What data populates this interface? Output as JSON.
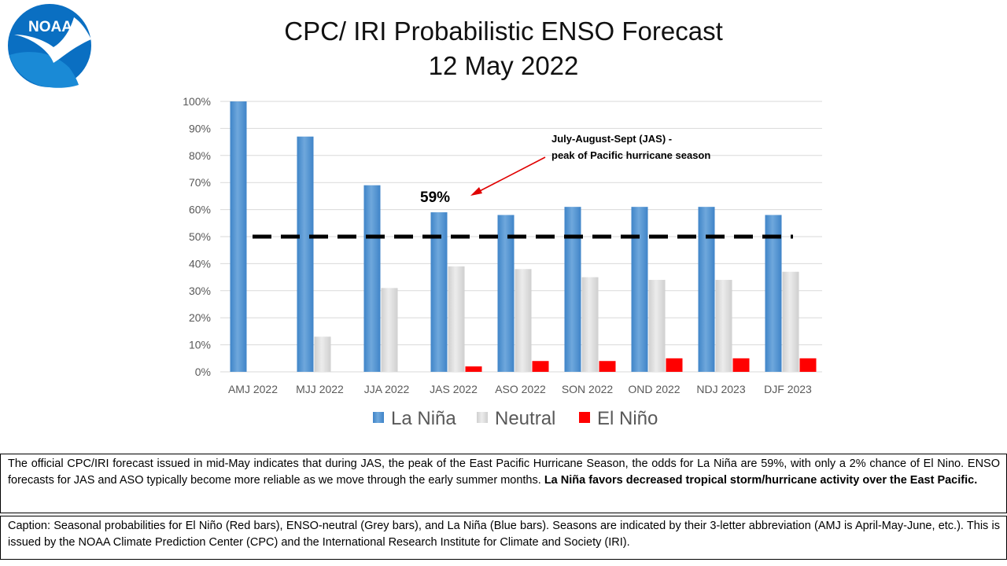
{
  "page": {
    "logo_text": "NOAA",
    "title_line1": "CPC/ IRI Probabilistic  ENSO Forecast",
    "title_line2": "12 May 2022"
  },
  "annotation": {
    "line1": "July-August-Sept (JAS) -",
    "line2": "peak of Pacific hurricane season",
    "value_label": "59%",
    "threshold": 50
  },
  "colors": {
    "la_nina": "#5b9bd5",
    "neutral": "#d9d9d9",
    "el_nino": "#ff0000",
    "grid": "#d9d9d9",
    "threshold_line": "#000000",
    "arrow": "#e00000",
    "logo_blue": "#0a6fc2"
  },
  "summary": {
    "text": "The official CPC/IRI forecast issued in mid-May indicates that during JAS, the peak of the East Pacific Hurricane Season, the odds for La Niña are 59%, with only a 2% chance of El Nino.  ENSO forecasts for JAS and ASO typically become more reliable as we move through the early summer months. ",
    "bold": "La Niña favors decreased tropical storm/hurricane activity over the East Pacific."
  },
  "caption": {
    "text": "Caption: Seasonal probabilities for El Niño (Red bars), ENSO-neutral (Grey bars), and La Niña (Blue bars). Seasons are indicated by their 3-letter abbreviation (AMJ is April-May-June, etc.). This is issued by the NOAA Climate Prediction Center (CPC) and the International Research Institute for Climate and Society (IRI)."
  },
  "chart_data": {
    "type": "bar",
    "title": "CPC/ IRI Probabilistic  ENSO Forecast",
    "subtitle": "12 May 2022",
    "categories": [
      "AMJ 2022",
      "MJJ 2022",
      "JJA 2022",
      "JAS 2022",
      "ASO 2022",
      "SON 2022",
      "OND 2022",
      "NDJ 2023",
      "DJF 2023"
    ],
    "series": [
      {
        "name": "La Niña",
        "color": "#5b9bd5",
        "values": [
          100,
          87,
          69,
          59,
          58,
          61,
          61,
          61,
          58
        ]
      },
      {
        "name": "Neutral",
        "color": "#d9d9d9",
        "values": [
          0,
          13,
          31,
          39,
          38,
          35,
          34,
          34,
          37
        ]
      },
      {
        "name": "El Niño",
        "color": "#ff0000",
        "values": [
          0,
          0,
          0,
          2,
          4,
          4,
          5,
          5,
          5
        ]
      }
    ],
    "yticks": [
      "0%",
      "10%",
      "20%",
      "30%",
      "40%",
      "50%",
      "60%",
      "70%",
      "80%",
      "90%",
      "100%"
    ],
    "ylim": [
      0,
      100
    ],
    "grid": true,
    "legend_position": "bottom"
  }
}
